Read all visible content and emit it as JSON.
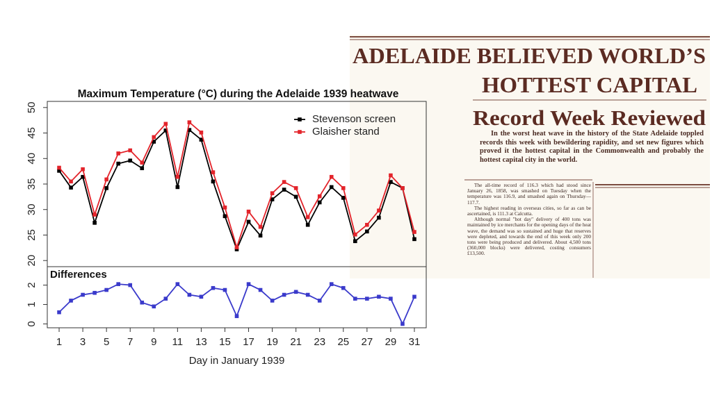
{
  "chart_data": [
    {
      "type": "line",
      "title": "Maximum Temperature (°C) during the Adelaide 1939 heatwave",
      "x": [
        1,
        2,
        3,
        4,
        5,
        6,
        7,
        8,
        9,
        10,
        11,
        12,
        13,
        14,
        15,
        16,
        17,
        18,
        19,
        20,
        21,
        22,
        23,
        24,
        25,
        26,
        27,
        28,
        29,
        30,
        31
      ],
      "xlim": [
        0,
        32
      ],
      "ylim": [
        18.8,
        51.2
      ],
      "yticks": [
        20,
        25,
        30,
        35,
        40,
        45,
        50
      ],
      "legend": "topright",
      "series": [
        {
          "name": "Stevenson screen",
          "color": "#000000",
          "values": [
            37.6,
            34.3,
            36.4,
            27.4,
            34.2,
            39.0,
            39.6,
            38.1,
            43.3,
            45.5,
            34.4,
            45.6,
            43.7,
            35.5,
            28.7,
            22.2,
            27.6,
            24.9,
            32.0,
            33.9,
            32.5,
            27.0,
            31.4,
            34.4,
            32.3,
            23.8,
            25.7,
            28.4,
            35.4,
            34.2,
            24.2
          ]
        },
        {
          "name": "Glaisher stand",
          "color": "#e3242b",
          "values": [
            38.2,
            35.5,
            37.9,
            29.0,
            35.9,
            41.0,
            41.6,
            39.2,
            44.2,
            46.8,
            36.4,
            47.1,
            45.1,
            37.3,
            30.4,
            22.6,
            29.6,
            26.6,
            33.2,
            35.4,
            34.2,
            28.5,
            32.6,
            36.4,
            34.2,
            25.1,
            27.0,
            29.8,
            36.7,
            34.2,
            25.6
          ]
        }
      ]
    },
    {
      "type": "line",
      "title": "Differences",
      "xlabel": "Day in January 1939",
      "x": [
        1,
        2,
        3,
        4,
        5,
        6,
        7,
        8,
        9,
        10,
        11,
        12,
        13,
        14,
        15,
        16,
        17,
        18,
        19,
        20,
        21,
        22,
        23,
        24,
        25,
        26,
        27,
        28,
        29,
        30,
        31
      ],
      "xlim": [
        0,
        32
      ],
      "xticks": [
        1,
        3,
        5,
        7,
        9,
        11,
        13,
        15,
        17,
        19,
        21,
        23,
        25,
        27,
        29,
        31
      ],
      "ylim": [
        -0.2,
        2.95
      ],
      "yticks": [
        0,
        1,
        2
      ],
      "series": [
        {
          "color": "#3a3acb",
          "values": [
            0.6,
            1.2,
            1.5,
            1.6,
            1.75,
            2.05,
            2.0,
            1.1,
            0.9,
            1.3,
            2.05,
            1.5,
            1.4,
            1.85,
            1.75,
            0.4,
            2.05,
            1.75,
            1.2,
            1.5,
            1.65,
            1.5,
            1.2,
            2.05,
            1.85,
            1.3,
            1.3,
            1.4,
            1.3,
            0,
            1.4
          ]
        }
      ]
    }
  ],
  "clipping": {
    "headline": [
      "ADELAIDE BELIEVED WORLD’S",
      "HOTTEST CAPITAL"
    ],
    "subheadline": "Record Week Reviewed",
    "lede": "In the worst heat wave in the history of the State Adelaide toppled records this week with bewildering rapidity, and set new figures which proved it the hottest capital in the Commonwealth and probably the hottest capital city in the world.",
    "body": [
      "The all-time record of 116.3 which had stood since January 26, 1858, was smashed on Tuesday when the temperature was 116.9, and smashed again on Thursday—117.7.",
      "The highest reading in overseas cities, so far as can be ascertained, is 111.3 at Calcutta.",
      "Although normal \"hot day\" delivery of 400 tons was maintained by ice merchants for the opening days of the heat wave, the demand was so sustained and huge that reserves were depleted, and towards the end of this week only 200 tons were being produced and delivered. About 4,500 tons (360,000 blocks) were delivered, costing consumers £13,500."
    ]
  }
}
